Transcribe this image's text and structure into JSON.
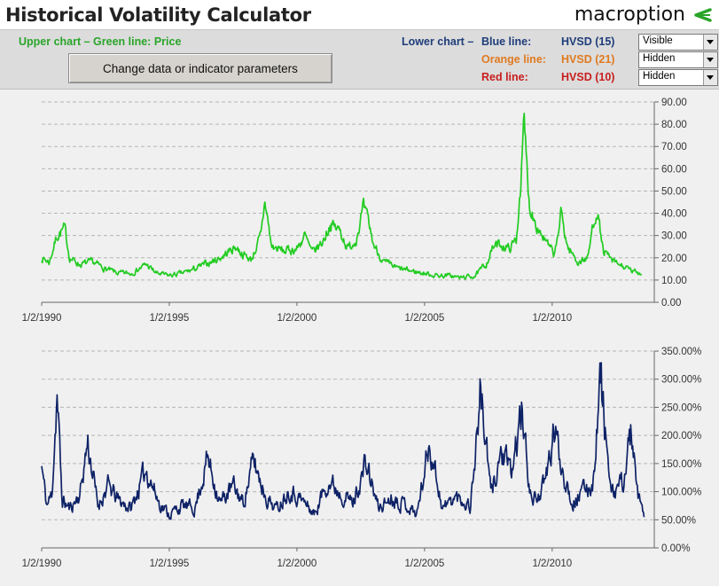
{
  "app": {
    "title": "Historical Volatility Calculator",
    "logo_text": "macroption",
    "accent_color": "#2aa52a"
  },
  "controls": {
    "upper_legend": "Upper chart – Green line: Price",
    "change_button_label": "Change data or indicator parameters",
    "lower_chart_prefix": "Lower chart –",
    "lines": [
      {
        "label": "Blue line:",
        "indicator": "HVSD (15)",
        "dropdown_value": "Visible",
        "color": "#1f3d7a"
      },
      {
        "label": "Orange line:",
        "indicator": "HVSD (21)",
        "dropdown_value": "Hidden",
        "color": "#e07a20"
      },
      {
        "label": "Red line:",
        "indicator": "HVSD (10)",
        "dropdown_value": "Hidden",
        "color": "#c81e1e"
      }
    ]
  },
  "chart_data": [
    {
      "type": "line",
      "x_ticks": [
        "1/2/1990",
        "1/2/1995",
        "1/2/2000",
        "1/2/2005",
        "1/2/2010"
      ],
      "y_ticks": [
        "0.00",
        "10.00",
        "20.00",
        "30.00",
        "40.00",
        "50.00",
        "60.00",
        "70.00",
        "80.00",
        "90.00"
      ],
      "ylim": [
        0,
        90
      ],
      "xlim": [
        1990.0,
        2014.0
      ],
      "grid": true,
      "series": [
        {
          "color": "#22cc22",
          "x": [
            1990.0,
            1990.3,
            1990.6,
            1990.9,
            1991.1,
            1991.5,
            1992.0,
            1992.5,
            1993.0,
            1993.5,
            1994.1,
            1994.5,
            1995.0,
            1995.5,
            1996.0,
            1996.6,
            1997.0,
            1997.6,
            1997.85,
            1998.2,
            1998.6,
            1998.75,
            1999.0,
            1999.5,
            2000.0,
            2000.3,
            2000.6,
            2001.0,
            2001.3,
            2001.7,
            2002.0,
            2002.3,
            2002.6,
            2002.8,
            2003.0,
            2003.4,
            2004.0,
            2004.5,
            2005.0,
            2005.5,
            2006.0,
            2006.4,
            2007.0,
            2007.4,
            2007.7,
            2008.0,
            2008.3,
            2008.6,
            2008.8,
            2008.9,
            2009.1,
            2009.4,
            2009.8,
            2010.1,
            2010.35,
            2010.6,
            2011.0,
            2011.4,
            2011.6,
            2011.75,
            2012.0,
            2012.4,
            2012.8,
            2013.1,
            2013.5
          ],
          "y": [
            20,
            18,
            30,
            33,
            20,
            17,
            18,
            15,
            13,
            13,
            17,
            13,
            12,
            13,
            15,
            18,
            20,
            25,
            22,
            19,
            30,
            46,
            25,
            23,
            24,
            30,
            22,
            27,
            35,
            32,
            24,
            28,
            42,
            36,
            26,
            18,
            15,
            14,
            13,
            12,
            12,
            11,
            12,
            17,
            25,
            26,
            24,
            28,
            60,
            80,
            44,
            35,
            26,
            21,
            40,
            25,
            18,
            20,
            35,
            42,
            23,
            18,
            16,
            14,
            13
          ]
        }
      ]
    },
    {
      "type": "line",
      "x_ticks": [
        "1/2/1990",
        "1/2/1995",
        "1/2/2000",
        "1/2/2005",
        "1/2/2010"
      ],
      "y_ticks": [
        "0.00%",
        "50.00%",
        "100.00%",
        "150.00%",
        "200.00%",
        "250.00%",
        "300.00%",
        "350.00%"
      ],
      "ylim": [
        0,
        350
      ],
      "xlim": [
        1990.0,
        2014.0
      ],
      "grid": true,
      "series": [
        {
          "color": "#0e2266",
          "x": [
            1990.0,
            1990.2,
            1990.4,
            1990.6,
            1990.8,
            1991.1,
            1991.5,
            1991.8,
            1992.2,
            1992.6,
            1993.0,
            1993.5,
            1994.1,
            1994.6,
            1995.0,
            1995.5,
            1996.0,
            1996.5,
            1997.0,
            1997.5,
            1997.9,
            1998.3,
            1998.8,
            1999.2,
            1999.7,
            2000.2,
            2000.7,
            2001.2,
            2001.7,
            2002.2,
            2002.7,
            2003.2,
            2003.7,
            2004.2,
            2004.7,
            2005.2,
            2005.7,
            2006.2,
            2006.5,
            2006.8,
            2007.2,
            2007.6,
            2008.0,
            2008.4,
            2008.8,
            2009.2,
            2009.7,
            2010.1,
            2010.35,
            2010.8,
            2011.2,
            2011.6,
            2011.9,
            2012.3,
            2012.8,
            2013.1,
            2013.3,
            2013.6
          ],
          "y": [
            145,
            75,
            95,
            275,
            85,
            70,
            95,
            190,
            75,
            110,
            85,
            70,
            140,
            80,
            60,
            75,
            70,
            160,
            80,
            110,
            80,
            155,
            90,
            70,
            105,
            85,
            60,
            120,
            100,
            80,
            150,
            70,
            90,
            80,
            60,
            190,
            70,
            90,
            85,
            75,
            280,
            95,
            170,
            130,
            240,
            80,
            110,
            210,
            150,
            80,
            100,
            115,
            310,
            90,
            120,
            210,
            100,
            55
          ]
        }
      ]
    }
  ]
}
